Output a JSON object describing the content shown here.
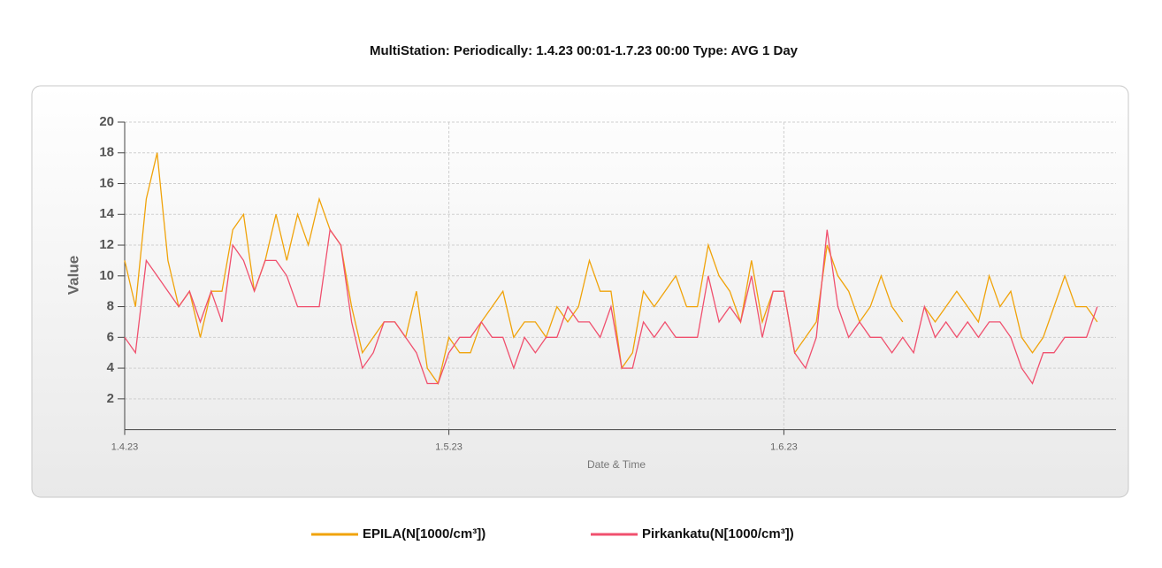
{
  "chart_data": {
    "type": "line",
    "title": "MultiStation:  Periodically: 1.4.23 00:01-1.7.23 00:00  Type: AVG 1 Day",
    "xlabel": "Date & Time",
    "ylabel": "Value",
    "categories": [
      "1.4.23",
      null,
      null,
      null,
      null,
      null,
      null,
      null,
      null,
      null,
      null,
      null,
      null,
      null,
      null,
      null,
      null,
      null,
      null,
      null,
      null,
      null,
      null,
      null,
      null,
      null,
      null,
      null,
      null,
      null,
      "1.5.23",
      null,
      null,
      null,
      null,
      null,
      null,
      null,
      null,
      null,
      null,
      null,
      null,
      null,
      null,
      null,
      null,
      null,
      null,
      null,
      null,
      null,
      null,
      null,
      null,
      null,
      null,
      null,
      null,
      null,
      null,
      "1.6.23",
      null,
      null,
      null,
      null,
      null,
      null,
      null,
      null,
      null,
      null,
      null,
      null,
      null,
      null,
      null,
      null,
      null,
      null,
      null,
      null,
      null,
      null,
      null,
      null,
      null,
      null,
      null,
      null,
      null
    ],
    "series": [
      {
        "name": "EPILA(N[1000/cm³])",
        "color": "#f0a30a",
        "values": [
          11,
          8,
          15,
          18,
          11,
          8,
          9,
          6,
          9,
          9,
          13,
          14,
          9,
          11,
          14,
          11,
          14,
          12,
          15,
          13,
          12,
          8,
          5,
          6,
          7,
          7,
          6,
          9,
          4,
          3,
          6,
          5,
          5,
          7,
          8,
          9,
          6,
          7,
          7,
          6,
          8,
          7,
          8,
          11,
          9,
          9,
          4,
          5,
          9,
          8,
          9,
          10,
          8,
          8,
          12,
          10,
          9,
          7,
          11,
          7,
          9,
          9,
          5,
          6,
          7,
          12,
          10,
          9,
          7,
          8,
          10,
          8,
          7,
          null,
          8,
          7,
          8,
          9,
          8,
          7,
          10,
          8,
          9,
          6,
          5,
          6,
          8,
          10,
          8,
          8,
          7
        ]
      },
      {
        "name": "Pirkankatu(N[1000/cm³])",
        "color": "#f0506e",
        "values": [
          6,
          5,
          11,
          10,
          9,
          8,
          9,
          7,
          9,
          7,
          12,
          11,
          9,
          11,
          11,
          10,
          8,
          8,
          8,
          13,
          12,
          7,
          4,
          5,
          7,
          7,
          6,
          5,
          3,
          3,
          5,
          6,
          6,
          7,
          6,
          6,
          4,
          6,
          5,
          6,
          6,
          8,
          7,
          7,
          6,
          8,
          4,
          4,
          7,
          6,
          7,
          6,
          6,
          6,
          10,
          7,
          8,
          7,
          10,
          6,
          9,
          9,
          5,
          4,
          6,
          13,
          8,
          6,
          7,
          6,
          6,
          5,
          6,
          5,
          8,
          6,
          7,
          6,
          7,
          6,
          7,
          7,
          6,
          4,
          3,
          5,
          5,
          6,
          6,
          6,
          8
        ]
      }
    ],
    "ylim": [
      0,
      20
    ],
    "yticks": [
      2,
      4,
      6,
      8,
      10,
      12,
      14,
      16,
      18,
      20
    ],
    "grid": true,
    "legend": "bottom"
  }
}
